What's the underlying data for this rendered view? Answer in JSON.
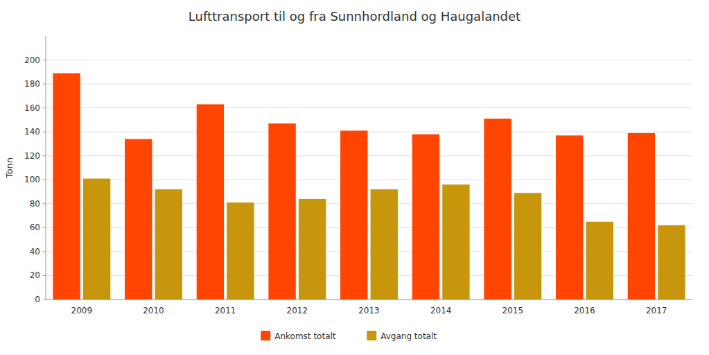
{
  "chart_data": {
    "type": "bar",
    "title": "Lufttransport til og fra Sunnhordland og Haugalandet",
    "ylabel": "Tonn",
    "categories": [
      "2009",
      "2010",
      "2011",
      "2012",
      "2013",
      "2014",
      "2015",
      "2016",
      "2017"
    ],
    "series": [
      {
        "name": "Ankomst totalt",
        "color": "#FF4500",
        "values": [
          189,
          134,
          163,
          147,
          141,
          138,
          151,
          137,
          139
        ]
      },
      {
        "name": "Avgang totalt",
        "color": "#C8960C",
        "values": [
          101,
          92,
          81,
          84,
          92,
          96,
          89,
          65,
          62
        ]
      }
    ],
    "ylim": [
      0,
      220
    ],
    "yticks": [
      0,
      20,
      40,
      60,
      80,
      100,
      120,
      140,
      160,
      180,
      200
    ],
    "grid": true,
    "legend": "bottom"
  }
}
